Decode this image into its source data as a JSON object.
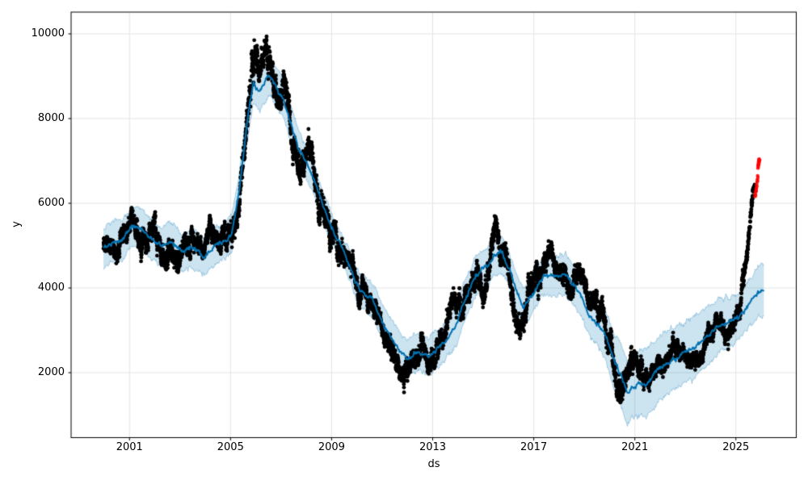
{
  "figure": {
    "background": "#ffffff",
    "description": "Prophet time-series forecast plot: black daily observations, blue forecast line (yhat) with light-blue uncertainty interval, red flagged anomaly points at the end of the series"
  },
  "chart_data": {
    "type": "scatter",
    "subtype": "prophet-forecast",
    "title": "",
    "xlabel": "ds",
    "ylabel": "y",
    "xlim": [
      1998.69,
      2027.39
    ],
    "ylim": [
      467,
      10514
    ],
    "x_ticks": [
      2001,
      2005,
      2009,
      2013,
      2017,
      2021,
      2025
    ],
    "y_ticks": [
      2000,
      4000,
      6000,
      8000,
      10000
    ],
    "grid": true,
    "legend": "none",
    "seed": 42,
    "colors": {
      "forecast_line": "#0072B2",
      "uncertainty_band": "rgba(0,114,178,0.2)",
      "band_edge": "rgba(0,114,178,0.28)",
      "observations": "#000000",
      "anomalies": "rgba(255,0,0,0.88)",
      "grid": "#e5e5e5",
      "spine": "#000000",
      "text": "#000000"
    },
    "series": {
      "forecast_line": {
        "name": "yhat",
        "anchors": [
          [
            1999.97,
            4950
          ],
          [
            2000.3,
            5080
          ],
          [
            2000.7,
            5120
          ],
          [
            2001.1,
            5480
          ],
          [
            2001.5,
            5380
          ],
          [
            2001.9,
            5150
          ],
          [
            2002.25,
            4970
          ],
          [
            2002.6,
            5100
          ],
          [
            2003.1,
            4850
          ],
          [
            2003.5,
            4950
          ],
          [
            2003.95,
            4720
          ],
          [
            2004.4,
            5000
          ],
          [
            2004.8,
            5120
          ],
          [
            2005.05,
            5300
          ],
          [
            2005.35,
            6300
          ],
          [
            2005.65,
            7900
          ],
          [
            2005.9,
            8800
          ],
          [
            2006.15,
            8650
          ],
          [
            2006.5,
            9030
          ],
          [
            2006.8,
            8730
          ],
          [
            2007.05,
            8540
          ],
          [
            2007.4,
            7850
          ],
          [
            2007.7,
            7280
          ],
          [
            2008.0,
            6990
          ],
          [
            2008.4,
            6420
          ],
          [
            2008.7,
            5850
          ],
          [
            2009.0,
            5430
          ],
          [
            2009.35,
            5040
          ],
          [
            2009.65,
            4600
          ],
          [
            2010.1,
            3960
          ],
          [
            2010.6,
            3750
          ],
          [
            2011.1,
            3090
          ],
          [
            2011.7,
            2500
          ],
          [
            2012.0,
            2330
          ],
          [
            2012.4,
            2480
          ],
          [
            2012.85,
            2390
          ],
          [
            2013.15,
            2550
          ],
          [
            2013.5,
            2750
          ],
          [
            2013.95,
            3150
          ],
          [
            2014.3,
            3750
          ],
          [
            2014.7,
            4280
          ],
          [
            2015.05,
            4460
          ],
          [
            2015.55,
            4820
          ],
          [
            2015.75,
            4800
          ],
          [
            2016.0,
            4480
          ],
          [
            2016.35,
            3850
          ],
          [
            2016.6,
            3560
          ],
          [
            2016.85,
            3750
          ],
          [
            2017.15,
            4040
          ],
          [
            2017.4,
            4320
          ],
          [
            2017.8,
            4280
          ],
          [
            2018.25,
            4340
          ],
          [
            2018.6,
            4050
          ],
          [
            2018.9,
            3800
          ],
          [
            2019.2,
            3370
          ],
          [
            2019.85,
            2895
          ],
          [
            2020.2,
            2230
          ],
          [
            2020.5,
            1905
          ],
          [
            2020.7,
            1520
          ],
          [
            2021.0,
            1715
          ],
          [
            2021.45,
            1750
          ],
          [
            2022.0,
            2100
          ],
          [
            2022.4,
            2290
          ],
          [
            2023.0,
            2480
          ],
          [
            2023.4,
            2610
          ],
          [
            2024.3,
            3086
          ],
          [
            2025.0,
            3276
          ],
          [
            2025.3,
            3470
          ],
          [
            2025.6,
            3700
          ],
          [
            2025.9,
            3900
          ],
          [
            2026.12,
            3950
          ]
        ]
      },
      "uncertainty_band": {
        "name": "yhat_lower / yhat_upper",
        "halfwidth_anchors": [
          [
            1999.97,
            480
          ],
          [
            2003,
            450
          ],
          [
            2005.5,
            420
          ],
          [
            2006.5,
            470
          ],
          [
            2008,
            380
          ],
          [
            2009.5,
            330
          ],
          [
            2011,
            420
          ],
          [
            2013,
            450
          ],
          [
            2015,
            460
          ],
          [
            2016.5,
            430
          ],
          [
            2018,
            470
          ],
          [
            2019.5,
            500
          ],
          [
            2020.6,
            750
          ],
          [
            2021.5,
            800
          ],
          [
            2022.5,
            720
          ],
          [
            2023.5,
            730
          ],
          [
            2024.3,
            650
          ],
          [
            2025.0,
            560
          ],
          [
            2025.5,
            540
          ],
          [
            2026.12,
            610
          ]
        ]
      },
      "observations": {
        "name": "y (daily observations)",
        "marker": "black dot",
        "t_start": 1999.97,
        "t_end": 2025.74,
        "points_per_year": 252,
        "offset_anchors": [
          [
            1999.97,
            -80
          ],
          [
            2000.5,
            -150
          ],
          [
            2001.05,
            300
          ],
          [
            2001.5,
            -300
          ],
          [
            2002.0,
            100
          ],
          [
            2002.65,
            -550
          ],
          [
            2003.2,
            -100
          ],
          [
            2004.0,
            80
          ],
          [
            2004.6,
            180
          ],
          [
            2005.1,
            -120
          ],
          [
            2005.55,
            150
          ],
          [
            2005.85,
            550
          ],
          [
            2006.1,
            -100
          ],
          [
            2006.45,
            80
          ],
          [
            2006.75,
            -180
          ],
          [
            2007.1,
            60
          ],
          [
            2007.5,
            -150
          ],
          [
            2008.3,
            400
          ],
          [
            2008.65,
            -80
          ],
          [
            2009.2,
            -150
          ],
          [
            2009.8,
            80
          ],
          [
            2010.4,
            -80
          ],
          [
            2011.0,
            -120
          ],
          [
            2011.6,
            -250
          ],
          [
            2012.1,
            -80
          ],
          [
            2012.6,
            50
          ],
          [
            2013.1,
            120
          ],
          [
            2013.7,
            420
          ],
          [
            2014.3,
            0
          ],
          [
            2014.8,
            -180
          ],
          [
            2015.3,
            150
          ],
          [
            2015.6,
            420
          ],
          [
            2015.95,
            150
          ],
          [
            2016.2,
            -250
          ],
          [
            2016.45,
            -500
          ],
          [
            2016.8,
            -150
          ],
          [
            2017.2,
            80
          ],
          [
            2017.7,
            380
          ],
          [
            2018.1,
            -80
          ],
          [
            2018.5,
            -220
          ],
          [
            2019.0,
            80
          ],
          [
            2019.5,
            -80
          ],
          [
            2020.1,
            -180
          ],
          [
            2020.35,
            -400
          ],
          [
            2020.65,
            200
          ],
          [
            2020.95,
            450
          ],
          [
            2021.3,
            80
          ],
          [
            2021.7,
            -50
          ],
          [
            2022.2,
            -180
          ],
          [
            2022.7,
            -80
          ],
          [
            2023.2,
            -120
          ],
          [
            2023.8,
            80
          ],
          [
            2024.3,
            80
          ],
          [
            2024.8,
            -80
          ],
          [
            2025.15,
            80
          ],
          [
            2025.35,
            500
          ],
          [
            2025.5,
            1400
          ],
          [
            2025.62,
            2150
          ],
          [
            2025.74,
            2360
          ]
        ],
        "spread_anchors": [
          [
            1999.97,
            210
          ],
          [
            2001,
            250
          ],
          [
            2002.6,
            280
          ],
          [
            2004,
            210
          ],
          [
            2005.3,
            300
          ],
          [
            2005.8,
            400
          ],
          [
            2006.3,
            360
          ],
          [
            2007,
            290
          ],
          [
            2008.2,
            360
          ],
          [
            2009,
            290
          ],
          [
            2010,
            240
          ],
          [
            2011.5,
            270
          ],
          [
            2012.5,
            240
          ],
          [
            2013.7,
            260
          ],
          [
            2015,
            260
          ],
          [
            2015.6,
            300
          ],
          [
            2016.4,
            310
          ],
          [
            2017.5,
            240
          ],
          [
            2018.5,
            240
          ],
          [
            2019.5,
            240
          ],
          [
            2020.3,
            330
          ],
          [
            2021,
            280
          ],
          [
            2022,
            210
          ],
          [
            2023,
            200
          ],
          [
            2024,
            210
          ],
          [
            2025.2,
            240
          ],
          [
            2025.5,
            160
          ],
          [
            2025.74,
            110
          ]
        ]
      },
      "anomalies": {
        "name": "flagged anomalous observations",
        "marker": "red dot",
        "points": [
          [
            2025.76,
            6160
          ],
          [
            2025.77,
            6230
          ],
          [
            2025.78,
            6190
          ],
          [
            2025.79,
            6280
          ],
          [
            2025.8,
            6330
          ],
          [
            2025.805,
            6290
          ],
          [
            2025.81,
            6360
          ],
          [
            2025.82,
            6440
          ],
          [
            2025.83,
            6400
          ],
          [
            2025.84,
            6500
          ],
          [
            2025.85,
            6560
          ],
          [
            2025.855,
            6530
          ],
          [
            2025.86,
            6650
          ],
          [
            2025.87,
            6610
          ],
          [
            2025.875,
            6830
          ],
          [
            2025.88,
            6890
          ],
          [
            2025.885,
            6860
          ],
          [
            2025.89,
            6930
          ],
          [
            2025.895,
            6970
          ],
          [
            2025.9,
            6910
          ],
          [
            2025.905,
            7000
          ],
          [
            2025.91,
            7030
          ],
          [
            2025.915,
            6950
          ],
          [
            2025.92,
            7045
          ],
          [
            2025.93,
            6990
          ],
          [
            2025.94,
            7020
          ]
        ]
      }
    }
  }
}
